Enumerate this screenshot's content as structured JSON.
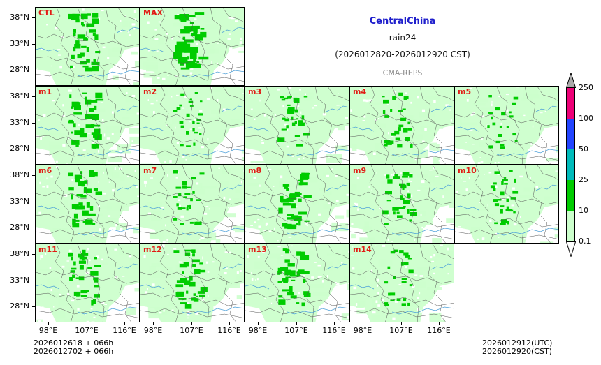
{
  "header": {
    "region": "CentralChina",
    "variable": "rain24",
    "period": "(2026012820-2026012920 CST)",
    "source": "CMA-REPS"
  },
  "panels": [
    {
      "label": "CTL",
      "intensity": 0.8
    },
    {
      "label": "MAX",
      "intensity": 1.0
    },
    {
      "label": "m1",
      "intensity": 0.8
    },
    {
      "label": "m2",
      "intensity": 0.35
    },
    {
      "label": "m3",
      "intensity": 0.6
    },
    {
      "label": "m4",
      "intensity": 0.5
    },
    {
      "label": "m5",
      "intensity": 0.3
    },
    {
      "label": "m6",
      "intensity": 0.75
    },
    {
      "label": "m7",
      "intensity": 0.45
    },
    {
      "label": "m8",
      "intensity": 0.85
    },
    {
      "label": "m9",
      "intensity": 0.6
    },
    {
      "label": "m10",
      "intensity": 0.5
    },
    {
      "label": "m11",
      "intensity": 0.7
    },
    {
      "label": "m12",
      "intensity": 0.75
    },
    {
      "label": "m13",
      "intensity": 0.8
    },
    {
      "label": "m14",
      "intensity": 0.4
    }
  ],
  "axes": {
    "lat_ticks": [
      "38°N",
      "33°N",
      "28°N"
    ],
    "lon_ticks": [
      "98°E",
      "107°E",
      "116°E"
    ]
  },
  "colorbar": {
    "levels": [
      "0.1",
      "10",
      "25",
      "50",
      "100",
      "250"
    ],
    "colors": [
      "#ccffcc",
      "#00cc00",
      "#00bbbb",
      "#2244ff",
      "#ee0077"
    ],
    "over_color": "#aaaaaa",
    "under_color": "#ffffff"
  },
  "footer": {
    "init_utc": "2026012618  +  066h",
    "init_cst": "2026012702  +  066h",
    "valid_utc": "2026012912(UTC)",
    "valid_cst": "2026012920(CST)"
  }
}
